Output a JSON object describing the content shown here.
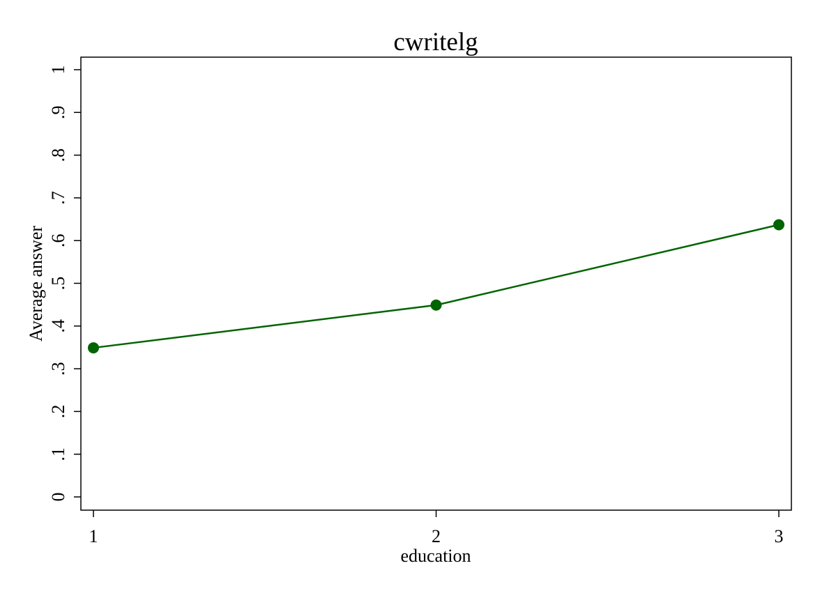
{
  "chart_data": {
    "type": "line",
    "title": "cwritelg",
    "xlabel": "education",
    "ylabel": "Average answer",
    "x": [
      1,
      2,
      3
    ],
    "x_tick_labels": [
      "1",
      "2",
      "3"
    ],
    "ylim": [
      0,
      1
    ],
    "y_ticks": [
      0,
      0.1,
      0.2,
      0.3,
      0.4,
      0.5,
      0.6,
      0.7,
      0.8,
      0.9,
      1
    ],
    "y_tick_labels": [
      "0",
      ".1",
      ".2",
      ".3",
      ".4",
      ".5",
      ".6",
      ".7",
      ".8",
      ".9",
      "1"
    ],
    "series": [
      {
        "values": [
          0.349,
          0.449,
          0.637
        ],
        "color": "#006400"
      }
    ],
    "grid": false,
    "legend": "none"
  }
}
